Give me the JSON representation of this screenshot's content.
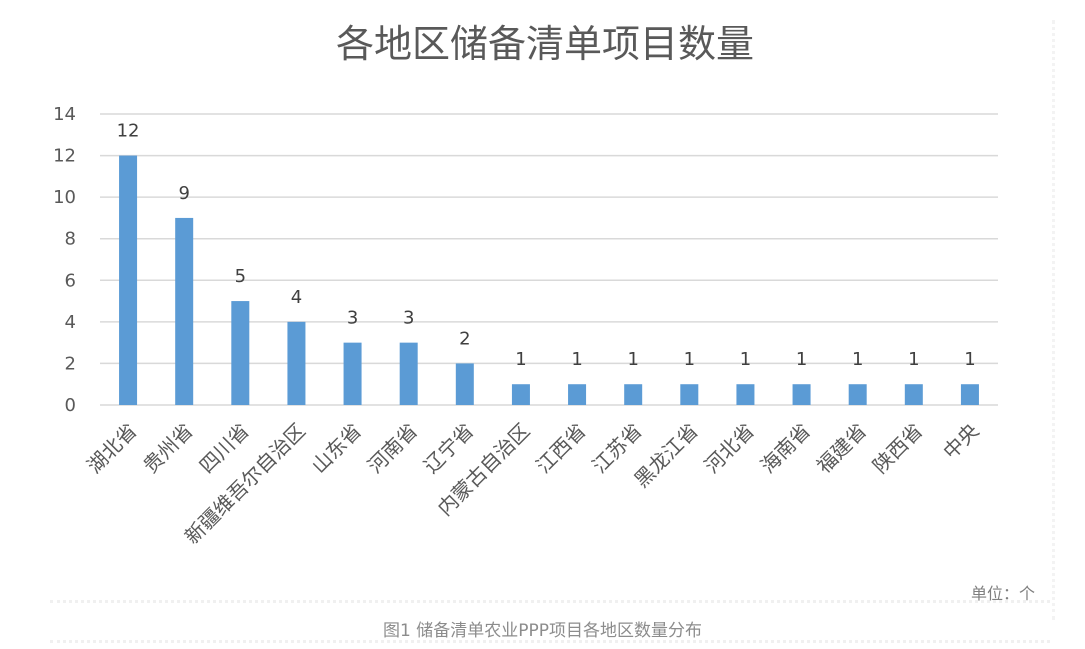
{
  "chart_data": {
    "type": "bar",
    "title": "各地区储备清单项目数量",
    "categories": [
      "湖北省",
      "贵州省",
      "四川省",
      "新疆维吾尔自治区",
      "山东省",
      "河南省",
      "辽宁省",
      "内蒙古自治区",
      "江西省",
      "江苏省",
      "黑龙江省",
      "河北省",
      "海南省",
      "福建省",
      "陕西省",
      "中央"
    ],
    "values": [
      12,
      9,
      5,
      4,
      3,
      3,
      2,
      1,
      1,
      1,
      1,
      1,
      1,
      1,
      1,
      1
    ],
    "ylim": [
      0,
      14
    ],
    "yticks": [
      0,
      2,
      4,
      6,
      8,
      10,
      12,
      14
    ],
    "grid": true,
    "legend": "none",
    "bar_color": "#5b9bd5",
    "grid_color": "#d9d9d9",
    "xlabel": "",
    "ylabel": ""
  },
  "unit_note": "单位：个",
  "caption": "图1  储备清单农业PPP项目各地区数量分布"
}
